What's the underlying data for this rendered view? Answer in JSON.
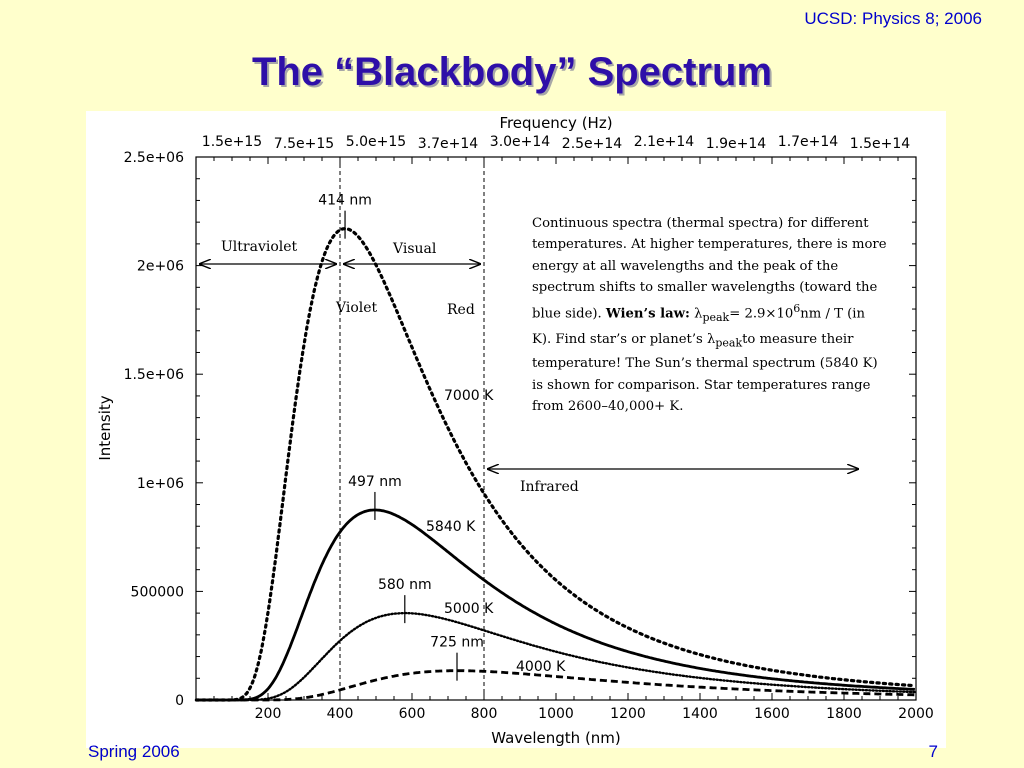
{
  "slide": {
    "course": "UCSD: Physics 8; 2006",
    "title": "The “Blackbody” Spectrum",
    "footer_left": "Spring 2006",
    "page_number": "7"
  },
  "chart_data": {
    "type": "line",
    "xlabel": "Wavelength (nm)",
    "ylabel": "Intensity",
    "top_axis_label": "Frequency (Hz)",
    "xlim": [
      0,
      2000
    ],
    "ylim": [
      0,
      2500000
    ],
    "x_ticks": [
      200,
      400,
      600,
      800,
      1000,
      1200,
      1400,
      1600,
      1800,
      2000
    ],
    "x_tick_labels": [
      "200",
      "400",
      "600",
      "800",
      "1000",
      "1200",
      "1400",
      "1600",
      "1800",
      "2000"
    ],
    "y_ticks": [
      0,
      500000,
      1000000,
      1500000,
      2000000,
      2500000
    ],
    "y_tick_labels": [
      "0",
      "500000",
      "1e+06",
      "1.5e+06",
      "2e+06",
      "2.5e+06"
    ],
    "top_ticks": [
      {
        "wavelength": 0,
        "label": "1.5e+15"
      },
      {
        "wavelength": 200,
        "label": "7.5e+15"
      },
      {
        "wavelength": 400,
        "label": "5.0e+15"
      },
      {
        "wavelength": 600,
        "label": "3.7e+14"
      },
      {
        "wavelength": 800,
        "label": "3.0e+14"
      },
      {
        "wavelength": 1000,
        "label": "2.5e+14"
      },
      {
        "wavelength": 1200,
        "label": "2.1e+14"
      },
      {
        "wavelength": 1400,
        "label": "1.9e+14"
      },
      {
        "wavelength": 1600,
        "label": "1.7e+14"
      },
      {
        "wavelength": 1800,
        "label": "1.5e+14"
      }
    ],
    "series": [
      {
        "name": "7000 K",
        "temperature": 7000,
        "peak_nm": 414,
        "peak_label": "414 nm",
        "style": "dotted",
        "peak_intensity": 2170000
      },
      {
        "name": "5840 K",
        "temperature": 5840,
        "peak_nm": 497,
        "peak_label": "497 nm",
        "style": "solid",
        "peak_intensity": 875000
      },
      {
        "name": "5000 K",
        "temperature": 5000,
        "peak_nm": 580,
        "peak_label": "580 nm",
        "style": "finedotted",
        "peak_intensity": 400000
      },
      {
        "name": "4000 K",
        "temperature": 4000,
        "peak_nm": 725,
        "peak_label": "725 nm",
        "style": "dashed",
        "peak_intensity": 135000
      }
    ],
    "vertical_lines": [
      400,
      800
    ],
    "regions": [
      {
        "label": "Ultraviolet",
        "from": 0,
        "to": 400
      },
      {
        "label": "Visual",
        "from": 400,
        "to": 800
      },
      {
        "label": "Infrared",
        "from": 800,
        "to": 1850
      }
    ],
    "edge_labels": {
      "violet": "Violet",
      "red": "Red"
    },
    "annotation": {
      "line1": "Continuous spectra (thermal spectra) for different",
      "line2": "temperatures. At higher temperatures, there is more",
      "line3": "energy at all wavelengths and the peak of the",
      "line4": "spectrum shifts to smaller wavelengths (toward the",
      "line5_a": "blue side). ",
      "law_label": "Wien’s law:",
      "lambda": "λ",
      "peak_sub": "peak",
      "formula": "= 2.9×10",
      "exp": "6",
      "formula_end": "nm / T (in",
      "line6_a": "K). Find star’s or planet’s ",
      "line6_b": "to measure their",
      "line7": "temperature! The Sun’s thermal spectrum (5840 K)",
      "line8": "is shown for comparison. Star temperatures range",
      "line9": "from 2600–40,000+ K."
    }
  }
}
